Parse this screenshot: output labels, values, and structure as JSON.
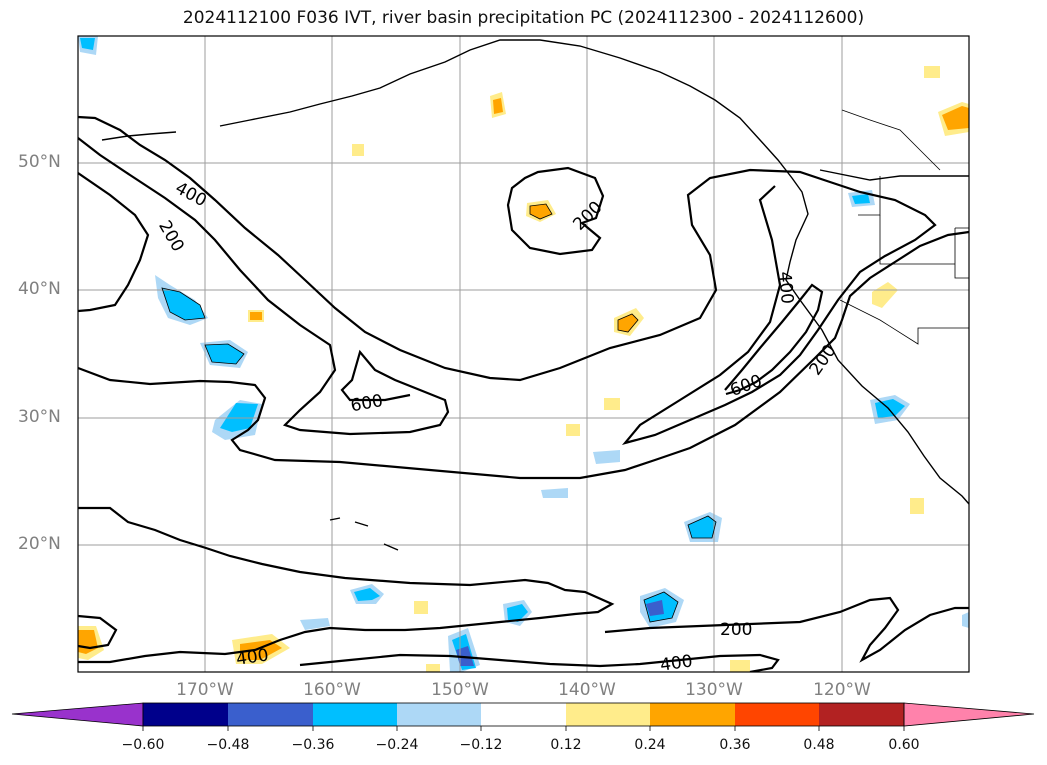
{
  "title": "2024112100 F036 IVT, river basin precipitation PC (2024112300 - 2024112600)",
  "lat_labels": [
    "50°N",
    "40°N",
    "30°N",
    "20°N"
  ],
  "lon_labels": [
    "170°W",
    "160°W",
    "150°W",
    "140°W",
    "130°W",
    "120°W"
  ],
  "map_extent": {
    "lon": [
      -180,
      -110
    ],
    "lat": [
      10,
      60
    ]
  },
  "contour_labels": [
    "400",
    "200",
    "200",
    "400",
    "600",
    "200",
    "600",
    "200",
    "400"
  ],
  "colorbar": {
    "ticks": [
      "−0.60",
      "−0.48",
      "−0.36",
      "−0.24",
      "−0.12",
      "0.12",
      "0.24",
      "0.36",
      "0.48",
      "0.60"
    ],
    "colors": [
      "#9932cc",
      "#00008b",
      "#3a5fcd",
      "#00bfff",
      "#add8f6",
      "#ffffff",
      "#ffec8b",
      "#ffa500",
      "#ff4500",
      "#b22222",
      "#ff82ab"
    ]
  }
}
